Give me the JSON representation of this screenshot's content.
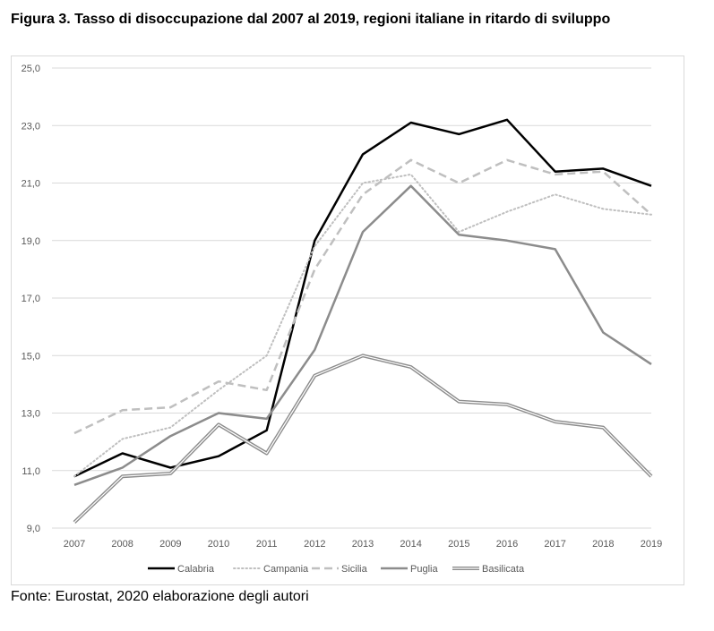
{
  "title": "Figura 3. Tasso di disoccupazione dal 2007 al 2019, regioni italiane in ritardo di sviluppo",
  "source": "Fonte: Eurostat, 2020 elaborazione degli autori",
  "chart_data": {
    "type": "line",
    "title": "",
    "xlabel": "",
    "ylabel": "",
    "x": [
      "2007",
      "2008",
      "2009",
      "2010",
      "2011",
      "2012",
      "2013",
      "2014",
      "2015",
      "2016",
      "2017",
      "2018",
      "2019"
    ],
    "ylim": [
      9,
      25
    ],
    "yticks": [
      "9,0",
      "11,0",
      "13,0",
      "15,0",
      "17,0",
      "19,0",
      "21,0",
      "23,0",
      "25,0"
    ],
    "grid": true,
    "legend_position": "bottom",
    "series": [
      {
        "name": "Calabria",
        "color": "#000000",
        "style": "solid",
        "values": [
          10.8,
          11.6,
          11.1,
          11.5,
          12.4,
          19.0,
          22.0,
          23.1,
          22.7,
          23.2,
          21.4,
          21.5,
          20.9
        ]
      },
      {
        "name": "Campania",
        "color": "#bfbfbf",
        "style": "dotted",
        "values": [
          10.8,
          12.1,
          12.5,
          13.8,
          15.0,
          18.8,
          21.0,
          21.3,
          19.3,
          20.0,
          20.6,
          20.1,
          19.9
        ]
      },
      {
        "name": "Sicilia",
        "color": "#bfbfbf",
        "style": "dashed",
        "values": [
          12.3,
          13.1,
          13.2,
          14.1,
          13.8,
          18.0,
          20.6,
          21.8,
          21.0,
          21.8,
          21.3,
          21.4,
          19.9
        ]
      },
      {
        "name": "Puglia",
        "color": "#8c8c8c",
        "style": "solid",
        "values": [
          10.5,
          11.1,
          12.2,
          13.0,
          12.8,
          15.2,
          19.3,
          20.9,
          19.2,
          19.0,
          18.7,
          15.8,
          14.7
        ]
      },
      {
        "name": "Basilicata",
        "color": "#8c8c8c",
        "style": "double",
        "values": [
          9.2,
          10.8,
          10.9,
          12.6,
          11.6,
          14.3,
          15.0,
          14.6,
          13.4,
          13.3,
          12.7,
          12.5,
          10.8
        ]
      }
    ]
  }
}
